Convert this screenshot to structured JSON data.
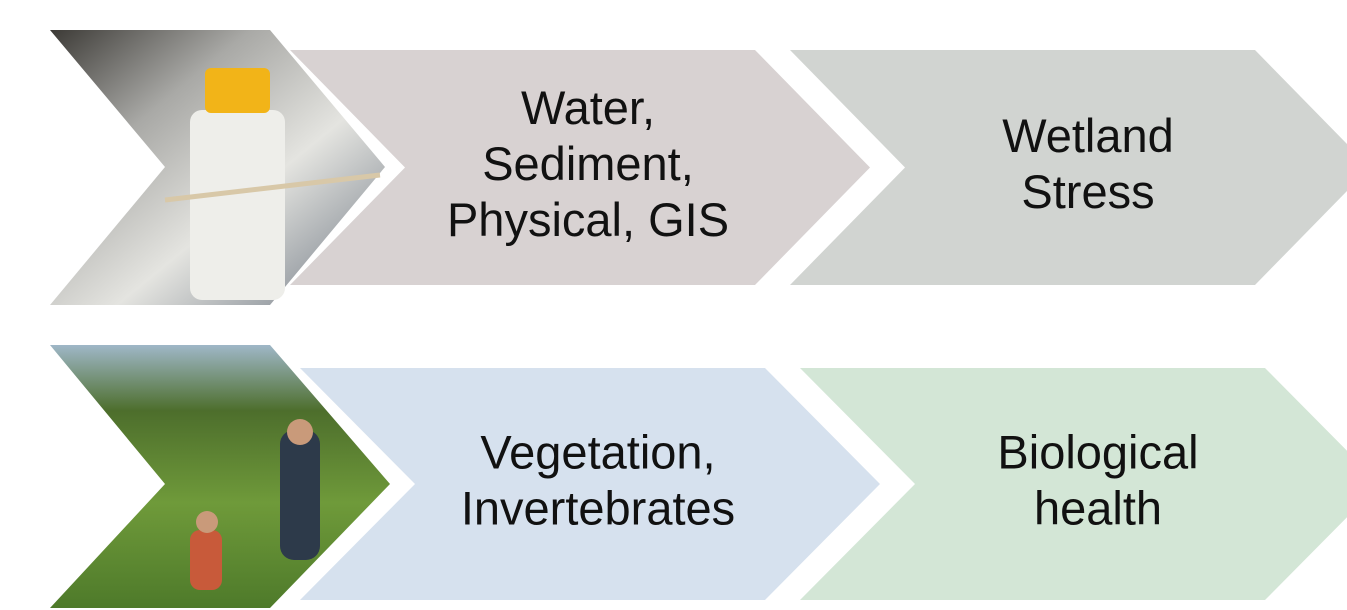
{
  "rows": [
    {
      "steps": [
        {
          "lines": [
            "Water,",
            "Sediment,",
            "Physical, GIS"
          ]
        },
        {
          "lines": [
            "Wetland",
            "Stress"
          ]
        }
      ]
    },
    {
      "steps": [
        {
          "lines": [
            "Vegetation,",
            "Invertebrates"
          ]
        },
        {
          "lines": [
            "Biological",
            "health"
          ]
        }
      ]
    }
  ]
}
